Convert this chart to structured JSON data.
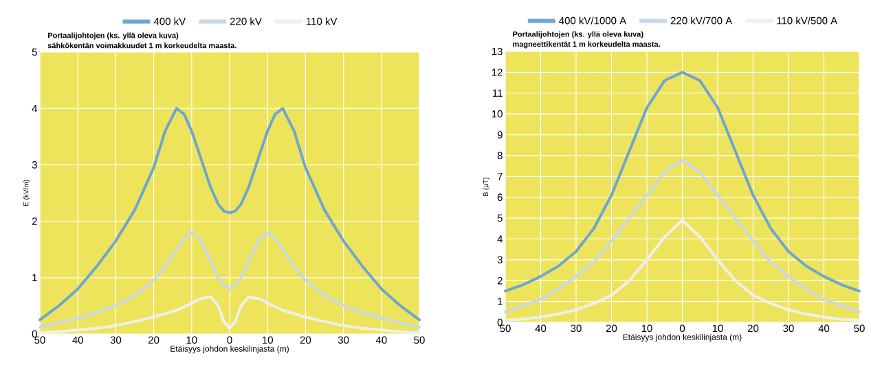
{
  "chart_data": [
    {
      "type": "line",
      "ylabel": "E (kV/m)",
      "xlabel": "Etäisyys johdon keskilinjasta (m)",
      "annotations": [
        "Portaalijohtojen (ks. yllä oleva kuva)",
        "sähkökentän voimakkuudet 1 m korkeudelta maasta."
      ],
      "x": [
        -50,
        -45,
        -40,
        -35,
        -30,
        -25,
        -20,
        -17,
        -14,
        -12,
        -10,
        -8,
        -5,
        -3,
        -1.5,
        0,
        1.5,
        3,
        5,
        8,
        10,
        12,
        14,
        17,
        20,
        25,
        30,
        35,
        40,
        45,
        50
      ],
      "series": [
        {
          "name": "400 kV",
          "color": "#6ea6cf",
          "values": [
            0.25,
            0.5,
            0.8,
            1.2,
            1.65,
            2.2,
            2.95,
            3.6,
            4.0,
            3.9,
            3.6,
            3.2,
            2.6,
            2.3,
            2.18,
            2.15,
            2.18,
            2.3,
            2.6,
            3.2,
            3.6,
            3.9,
            4.0,
            3.6,
            2.95,
            2.2,
            1.65,
            1.2,
            0.8,
            0.5,
            0.25
          ]
        },
        {
          "name": "220 kV",
          "color": "#c8d8e6",
          "values": [
            0.12,
            0.2,
            0.28,
            0.38,
            0.5,
            0.68,
            0.95,
            1.2,
            1.5,
            1.7,
            1.8,
            1.7,
            1.3,
            1.0,
            0.87,
            0.8,
            0.87,
            1.0,
            1.3,
            1.7,
            1.8,
            1.7,
            1.5,
            1.2,
            0.95,
            0.68,
            0.5,
            0.38,
            0.28,
            0.2,
            0.12
          ]
        },
        {
          "name": "110 kV",
          "color": "#eef0f0",
          "values": [
            0.02,
            0.04,
            0.07,
            0.1,
            0.15,
            0.22,
            0.3,
            0.36,
            0.42,
            0.48,
            0.55,
            0.62,
            0.66,
            0.5,
            0.22,
            0.1,
            0.22,
            0.5,
            0.66,
            0.62,
            0.55,
            0.48,
            0.42,
            0.36,
            0.3,
            0.22,
            0.15,
            0.1,
            0.07,
            0.04,
            0.02
          ]
        }
      ],
      "xlim": [
        -50,
        50
      ],
      "xticks": [
        {
          "value": -50,
          "label": "50"
        },
        {
          "value": -40,
          "label": "40"
        },
        {
          "value": -30,
          "label": "30"
        },
        {
          "value": -20,
          "label": "20"
        },
        {
          "value": -10,
          "label": "10"
        },
        0,
        10,
        20,
        30,
        40,
        50
      ],
      "ylim": [
        0,
        5
      ],
      "yticks": [
        0,
        1,
        2,
        3,
        4,
        5
      ],
      "grid": true,
      "legend": "top"
    },
    {
      "type": "line",
      "ylabel": "B (µT)",
      "xlabel": "Etäisyys johdon keskilinjasta (m)",
      "annotations": [
        "Portaalijohtojen (ks. yllä oleva kuva)",
        "magneettikentät 1 m korkeudelta maasta."
      ],
      "x": [
        -50,
        -45,
        -40,
        -35,
        -30,
        -25,
        -20,
        -15,
        -10,
        -5,
        0,
        5,
        10,
        15,
        20,
        25,
        30,
        35,
        40,
        45,
        50
      ],
      "series": [
        {
          "name": "400 kV/1000 A",
          "color": "#6ea6cf",
          "values": [
            1.5,
            1.8,
            2.2,
            2.7,
            3.4,
            4.5,
            6.1,
            8.2,
            10.3,
            11.6,
            12.0,
            11.6,
            10.3,
            8.2,
            6.1,
            4.5,
            3.4,
            2.7,
            2.2,
            1.8,
            1.5
          ]
        },
        {
          "name": "220 kV/700 A",
          "color": "#c8d8e6",
          "values": [
            0.5,
            0.8,
            1.1,
            1.6,
            2.2,
            2.9,
            3.9,
            5.0,
            6.1,
            7.2,
            7.8,
            7.2,
            6.1,
            5.0,
            3.9,
            2.9,
            2.2,
            1.6,
            1.1,
            0.8,
            0.5
          ]
        },
        {
          "name": "110 kV/500 A",
          "color": "#eef0f0",
          "values": [
            0.1,
            0.15,
            0.25,
            0.4,
            0.6,
            0.9,
            1.3,
            2.0,
            3.0,
            4.1,
            4.9,
            4.1,
            3.0,
            2.0,
            1.3,
            0.9,
            0.6,
            0.4,
            0.25,
            0.15,
            0.1
          ]
        }
      ],
      "xlim": [
        -50,
        50
      ],
      "xticks": [
        {
          "value": -50,
          "label": "50"
        },
        {
          "value": -40,
          "label": "40"
        },
        {
          "value": -30,
          "label": "30"
        },
        {
          "value": -20,
          "label": "20"
        },
        {
          "value": -10,
          "label": "10"
        },
        0,
        10,
        20,
        30,
        40,
        50
      ],
      "ylim": [
        0,
        13
      ],
      "yticks": [
        0,
        1,
        2,
        3,
        4,
        5,
        6,
        7,
        8,
        9,
        10,
        11,
        12,
        13
      ],
      "grid": true,
      "legend": "top"
    }
  ]
}
